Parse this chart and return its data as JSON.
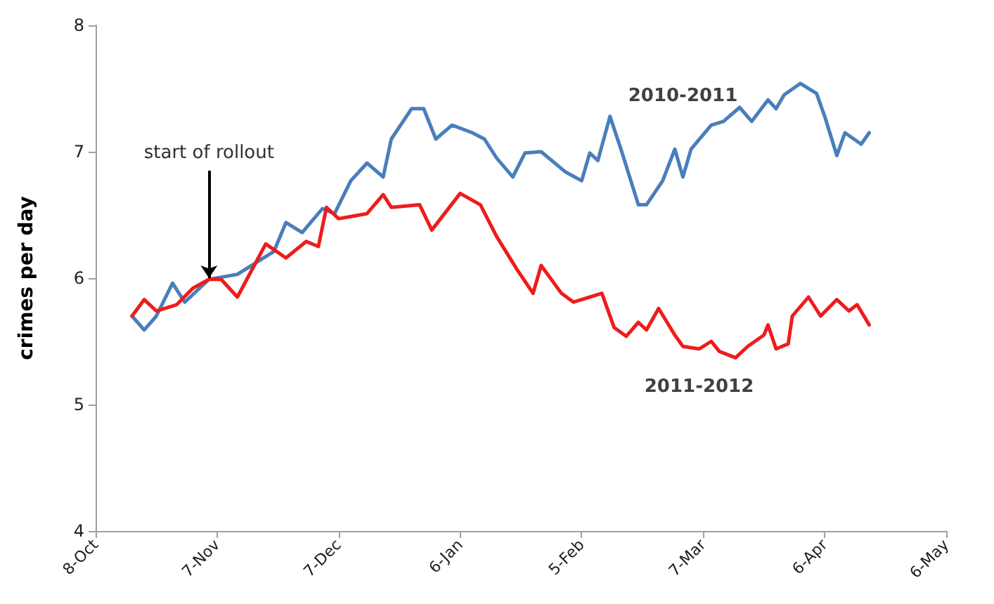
{
  "chart_data": {
    "type": "line",
    "ylabel": "crimes per day",
    "xlim": [
      "2010-10-08",
      "2011-05-06"
    ],
    "xticks": [
      {
        "value": "2010-10-08",
        "label": "8-Oct"
      },
      {
        "value": "2010-11-07",
        "label": "7-Nov"
      },
      {
        "value": "2010-12-07",
        "label": "7-Dec"
      },
      {
        "value": "2011-01-06",
        "label": "6-Jan"
      },
      {
        "value": "2011-02-05",
        "label": "5-Feb"
      },
      {
        "value": "2011-03-07",
        "label": "7-Mar"
      },
      {
        "value": "2011-04-06",
        "label": "6-Apr"
      },
      {
        "value": "2011-05-06",
        "label": "6-May"
      }
    ],
    "ylim": [
      4,
      8
    ],
    "yticks": [
      4,
      5,
      6,
      7,
      8
    ],
    "grid": false,
    "legend": false,
    "marker": "none",
    "series": [
      {
        "name": "2010-2011",
        "color": "#4a7ebb",
        "x": [
          "2010-10-17",
          "2010-10-20",
          "2010-10-23",
          "2010-10-27",
          "2010-10-30",
          "2010-11-05",
          "2010-11-12",
          "2010-11-21",
          "2010-11-24",
          "2010-11-28",
          "2010-12-03",
          "2010-12-06",
          "2010-12-10",
          "2010-12-14",
          "2010-12-18",
          "2010-12-20",
          "2010-12-25",
          "2010-12-28",
          "2010-12-31",
          "2011-01-04",
          "2011-01-09",
          "2011-01-12",
          "2011-01-15",
          "2011-01-19",
          "2011-01-22",
          "2011-01-26",
          "2011-02-01",
          "2011-02-05",
          "2011-02-07",
          "2011-02-09",
          "2011-02-12",
          "2011-02-15",
          "2011-02-19",
          "2011-02-21",
          "2011-02-25",
          "2011-02-28",
          "2011-03-02",
          "2011-03-04",
          "2011-03-09",
          "2011-03-12",
          "2011-03-16",
          "2011-03-19",
          "2011-03-23",
          "2011-03-25",
          "2011-03-27",
          "2011-03-31",
          "2011-04-04",
          "2011-04-06",
          "2011-04-09",
          "2011-04-11",
          "2011-04-15",
          "2011-04-17"
        ],
        "values": [
          5.7,
          5.59,
          5.7,
          5.96,
          5.81,
          5.99,
          6.03,
          6.21,
          6.44,
          6.36,
          6.55,
          6.51,
          6.77,
          6.91,
          6.8,
          7.1,
          7.34,
          7.34,
          7.1,
          7.21,
          7.15,
          7.1,
          6.95,
          6.8,
          6.99,
          7.0,
          6.84,
          6.77,
          6.99,
          6.93,
          7.28,
          6.99,
          6.58,
          6.58,
          6.77,
          7.02,
          6.8,
          7.02,
          7.21,
          7.24,
          7.35,
          7.24,
          7.41,
          7.34,
          7.45,
          7.54,
          7.46,
          7.28,
          6.97,
          7.15,
          7.06,
          7.15
        ]
      },
      {
        "name": "2011-2012",
        "color": "#ee1c1c",
        "x": [
          "2010-10-17",
          "2010-10-20",
          "2010-10-23",
          "2010-10-28",
          "2010-11-01",
          "2010-11-05",
          "2010-11-08",
          "2010-11-12",
          "2010-11-16",
          "2010-11-19",
          "2010-11-24",
          "2010-11-29",
          "2010-12-02",
          "2010-12-04",
          "2010-12-07",
          "2010-12-14",
          "2010-12-18",
          "2010-12-20",
          "2010-12-27",
          "2010-12-30",
          "2011-01-06",
          "2011-01-11",
          "2011-01-15",
          "2011-01-20",
          "2011-01-24",
          "2011-01-26",
          "2011-01-31",
          "2011-02-03",
          "2011-02-10",
          "2011-02-13",
          "2011-02-16",
          "2011-02-19",
          "2011-02-21",
          "2011-02-24",
          "2011-02-28",
          "2011-03-02",
          "2011-03-06",
          "2011-03-09",
          "2011-03-11",
          "2011-03-15",
          "2011-03-18",
          "2011-03-22",
          "2011-03-23",
          "2011-03-25",
          "2011-03-28",
          "2011-03-29",
          "2011-04-02",
          "2011-04-05",
          "2011-04-09",
          "2011-04-12",
          "2011-04-14",
          "2011-04-17"
        ],
        "values": [
          5.7,
          5.83,
          5.74,
          5.79,
          5.92,
          5.99,
          5.99,
          5.85,
          6.09,
          6.27,
          6.16,
          6.29,
          6.25,
          6.56,
          6.47,
          6.51,
          6.66,
          6.56,
          6.58,
          6.38,
          6.67,
          6.58,
          6.33,
          6.07,
          5.88,
          6.1,
          5.88,
          5.81,
          5.88,
          5.61,
          5.54,
          5.65,
          5.59,
          5.76,
          5.55,
          5.46,
          5.44,
          5.5,
          5.42,
          5.37,
          5.46,
          5.55,
          5.63,
          5.44,
          5.48,
          5.7,
          5.85,
          5.7,
          5.83,
          5.74,
          5.79,
          5.63
        ]
      }
    ],
    "annotations": [
      {
        "text": "start of rollout",
        "x": "2010-11-05",
        "y": 6.0
      }
    ]
  }
}
